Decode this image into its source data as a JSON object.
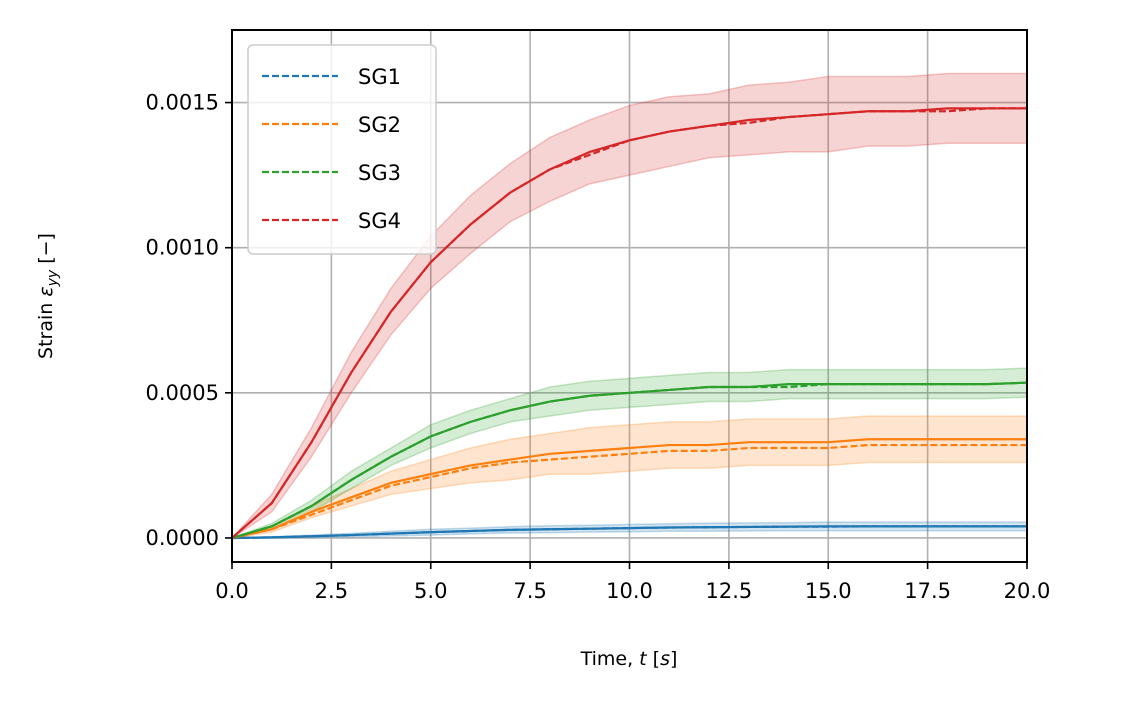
{
  "chart_data": {
    "type": "line",
    "title": "",
    "xlabel": "Time, t [s]",
    "xlabel_parts": {
      "pre": "Time, ",
      "var": "t",
      "post": " [",
      "unit": "s",
      "end": "]"
    },
    "ylabel": "Strain ε_yy [−]",
    "ylabel_parts": {
      "pre": "Strain ",
      "var": "ε",
      "sub": "yy",
      "post": "  [−]"
    },
    "xlim": [
      0,
      20
    ],
    "ylim": [
      -8.28e-05,
      0.00175
    ],
    "grid": true,
    "legend_position": "top-left",
    "xticks": [
      0,
      2.5,
      5,
      7.5,
      10,
      12.5,
      15,
      17.5,
      20
    ],
    "xtick_labels": [
      "0.0",
      "2.5",
      "5.0",
      "7.5",
      "10.0",
      "12.5",
      "15.0",
      "17.5",
      "20.0"
    ],
    "yticks": [
      0,
      0.0005,
      0.001,
      0.0015
    ],
    "ytick_labels": [
      "0.0000",
      "0.0005",
      "0.0010",
      "0.0015"
    ],
    "x": [
      0,
      1,
      2,
      3,
      4,
      5,
      6,
      7,
      8,
      9,
      10,
      11,
      12,
      13,
      14,
      15,
      16,
      17,
      18,
      19,
      20
    ],
    "series": [
      {
        "name": "SG1",
        "color": "#1f77b4",
        "solid": [
          0,
          2e-06,
          6e-06,
          1e-05,
          1.5e-05,
          2e-05,
          2.4e-05,
          2.8e-05,
          3e-05,
          3.2e-05,
          3.4e-05,
          3.6e-05,
          3.7e-05,
          3.8e-05,
          3.9e-05,
          4e-05,
          4e-05,
          4e-05,
          4e-05,
          4e-05,
          4e-05
        ],
        "dashed": [
          0,
          2e-06,
          6e-06,
          1e-05,
          1.5e-05,
          2e-05,
          2.4e-05,
          2.8e-05,
          3e-05,
          3.2e-05,
          3.4e-05,
          3.6e-05,
          3.7e-05,
          3.8e-05,
          3.9e-05,
          3.9e-05,
          4e-05,
          4e-05,
          4e-05,
          4e-05,
          4e-05
        ],
        "band": [
          0,
          2e-06,
          4e-06,
          6e-06,
          8e-06,
          1e-05,
          1e-05,
          1.1e-05,
          1.2e-05,
          1.2e-05,
          1.3e-05,
          1.3e-05,
          1.4e-05,
          1.4e-05,
          1.4e-05,
          1.5e-05,
          1.5e-05,
          1.5e-05,
          1.5e-05,
          1.5e-05,
          1.5e-05
        ]
      },
      {
        "name": "SG2",
        "color": "#ff7f0e",
        "solid": [
          0,
          3e-05,
          9e-05,
          0.00014,
          0.00019,
          0.00022,
          0.00025,
          0.00027,
          0.00029,
          0.0003,
          0.00031,
          0.00032,
          0.00032,
          0.00033,
          0.00033,
          0.00033,
          0.00034,
          0.00034,
          0.00034,
          0.00034,
          0.00034
        ],
        "dashed": [
          0,
          3e-05,
          8e-05,
          0.00013,
          0.00018,
          0.00021,
          0.00024,
          0.00026,
          0.00027,
          0.00028,
          0.00029,
          0.0003,
          0.0003,
          0.00031,
          0.00031,
          0.00031,
          0.00032,
          0.00032,
          0.00032,
          0.00032,
          0.00032
        ],
        "band": [
          0,
          1e-05,
          2e-05,
          3e-05,
          4e-05,
          5e-05,
          6e-05,
          7e-05,
          7e-05,
          8e-05,
          8e-05,
          8e-05,
          8e-05,
          8e-05,
          8e-05,
          8e-05,
          8e-05,
          8e-05,
          8e-05,
          8e-05,
          8e-05
        ]
      },
      {
        "name": "SG3",
        "color": "#2ca02c",
        "solid": [
          0,
          4e-05,
          0.00011,
          0.0002,
          0.00028,
          0.00035,
          0.0004,
          0.00044,
          0.00047,
          0.00049,
          0.0005,
          0.00051,
          0.00052,
          0.00052,
          0.00053,
          0.00053,
          0.00053,
          0.00053,
          0.00053,
          0.00053,
          0.000535
        ],
        "dashed": [
          0,
          4e-05,
          0.00011,
          0.0002,
          0.00028,
          0.00035,
          0.0004,
          0.00044,
          0.00047,
          0.00049,
          0.0005,
          0.00051,
          0.00052,
          0.00052,
          0.00052,
          0.00053,
          0.00053,
          0.00053,
          0.00053,
          0.00053,
          0.000535
        ],
        "band": [
          0,
          1e-05,
          2e-05,
          3e-05,
          3e-05,
          4e-05,
          4e-05,
          4e-05,
          5e-05,
          5e-05,
          5e-05,
          5e-05,
          5e-05,
          5e-05,
          5e-05,
          5e-05,
          5e-05,
          5e-05,
          5e-05,
          5e-05,
          5e-05
        ]
      },
      {
        "name": "SG4",
        "color": "#d62728",
        "solid": [
          0,
          0.00012,
          0.00033,
          0.00057,
          0.00078,
          0.00095,
          0.00108,
          0.00119,
          0.00127,
          0.00133,
          0.00137,
          0.0014,
          0.00142,
          0.00144,
          0.00145,
          0.00146,
          0.00147,
          0.00147,
          0.00148,
          0.00148,
          0.00148
        ],
        "dashed": [
          0,
          0.00012,
          0.00033,
          0.00057,
          0.00078,
          0.00095,
          0.00108,
          0.00119,
          0.00127,
          0.00132,
          0.00137,
          0.0014,
          0.00142,
          0.00143,
          0.00145,
          0.00146,
          0.00147,
          0.00147,
          0.00147,
          0.00148,
          0.00148
        ],
        "band": [
          0,
          3e-05,
          5e-05,
          7e-05,
          8e-05,
          9e-05,
          0.0001,
          0.0001,
          0.00011,
          0.00011,
          0.00012,
          0.00012,
          0.00011,
          0.00012,
          0.00012,
          0.00013,
          0.00012,
          0.00012,
          0.00012,
          0.00012,
          0.00012
        ]
      }
    ]
  }
}
